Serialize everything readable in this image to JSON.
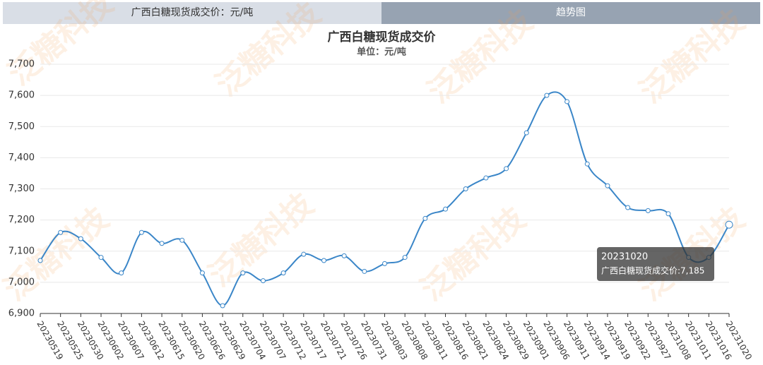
{
  "tabs": [
    "广西白糖现货成交价：元/吨",
    "趋势图"
  ],
  "watermark": "泛糖科技",
  "chart_data": {
    "type": "line",
    "title": "广西白糖现货成交价",
    "subtitle": "单位：元/吨",
    "categories": [
      "20230519",
      "20230525",
      "20230530",
      "20230602",
      "20230607",
      "20230612",
      "20230615",
      "20230620",
      "20230626",
      "20230629",
      "20230704",
      "20230707",
      "20230712",
      "20230717",
      "20230721",
      "20230726",
      "20230731",
      "20230803",
      "20230808",
      "20230811",
      "20230816",
      "20230821",
      "20230824",
      "20230829",
      "20230901",
      "20230906",
      "20230911",
      "20230914",
      "20230919",
      "20230922",
      "20230927",
      "20231008",
      "20231011",
      "20231016",
      "20231020"
    ],
    "series": [
      {
        "name": "广西白糖现货成交价",
        "color": "#3a86c8",
        "values": [
          7070,
          7160,
          7140,
          7080,
          7030,
          7160,
          7125,
          7135,
          7030,
          6925,
          7030,
          7005,
          7030,
          7090,
          7070,
          7085,
          7035,
          7060,
          7080,
          7205,
          7235,
          7300,
          7335,
          7365,
          7480,
          7600,
          7580,
          7380,
          7310,
          7240,
          7230,
          7220,
          7080,
          7080,
          7185
        ]
      }
    ],
    "ylim": [
      6900,
      7700
    ],
    "yticks": [
      {
        "value": 6900,
        "label": "6,900"
      },
      {
        "value": 7000,
        "label": "7,000"
      },
      {
        "value": 7100,
        "label": "7,100"
      },
      {
        "value": 7200,
        "label": "7,200"
      },
      {
        "value": 7300,
        "label": "7,300"
      },
      {
        "value": 7400,
        "label": "7,400"
      },
      {
        "value": 7500,
        "label": "7,500"
      },
      {
        "value": 7600,
        "label": "7,600"
      },
      {
        "value": 7700,
        "label": "7,700"
      }
    ],
    "grid": true,
    "tooltip": {
      "text": "广西白糖现货成交价:7,185"
    }
  }
}
